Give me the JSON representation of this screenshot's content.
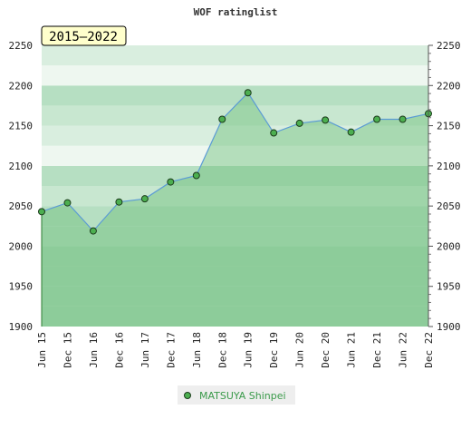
{
  "chart_data": {
    "type": "area",
    "title": "WOF ratinglist",
    "period_label": "2015–2022",
    "xlabel": "",
    "ylabel": "",
    "ylim": [
      1900,
      2250
    ],
    "yticks": [
      1900,
      1950,
      2000,
      2050,
      2100,
      2150,
      2200,
      2250
    ],
    "categories": [
      "Jun 15",
      "Dec 15",
      "Jun 16",
      "Dec 16",
      "Jun 17",
      "Dec 17",
      "Jun 18",
      "Dec 18",
      "Jun 19",
      "Dec 19",
      "Jun 20",
      "Dec 20",
      "Jun 21",
      "Dec 21",
      "Jun 22",
      "Dec 22"
    ],
    "series": [
      {
        "name": "MATSUYA Shinpei",
        "values": [
          2043,
          2054,
          2019,
          2055,
          2059,
          2080,
          2088,
          2158,
          2191,
          2141,
          2153,
          2157,
          2142,
          2158,
          2158,
          2165
        ]
      }
    ],
    "legend": "bottom",
    "grid": false,
    "colors": {
      "line": "#5b9bd5",
      "marker_fill": "#4caf50",
      "area_fill": "#6dbf7b",
      "legend_text": "#3a9a4a",
      "legend_bg": "#eeeeee",
      "period_bg": "#ffffcc"
    }
  }
}
